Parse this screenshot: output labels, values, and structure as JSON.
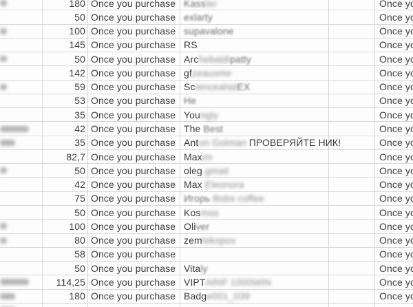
{
  "sheet": {
    "purchase_note": "Once you purchase",
    "colors": {
      "background": "#fdfdfd",
      "gridline": "#d8d8d8",
      "text": "#3a3a3a",
      "blurred_text": "#8c8c8c",
      "redaction_blob": "#b5b5b5"
    },
    "rows": [
      {
        "amount": "180",
        "blob": "sm",
        "note": true,
        "name": [
          {
            "t": "Kass",
            "b": 1
          },
          {
            "t": "ter",
            "b": 2
          }
        ]
      },
      {
        "amount": "50",
        "blob": "",
        "note": true,
        "name": [
          {
            "t": "exlarty",
            "b": 1
          }
        ]
      },
      {
        "amount": "100",
        "blob": "sm",
        "note": true,
        "name": [
          {
            "t": "supavalone",
            "b": 1
          }
        ]
      },
      {
        "amount": "145",
        "blob": "",
        "note": true,
        "name": [
          {
            "t": "RS",
            "b": 0
          }
        ]
      },
      {
        "amount": "50",
        "blob": "sm",
        "note": true,
        "name": [
          {
            "t": "Arc",
            "b": 0
          },
          {
            "t": "hebaldi",
            "b": 2
          },
          {
            "t": "patty",
            "b": 1
          }
        ]
      },
      {
        "amount": "142",
        "blob": "",
        "note": true,
        "name": [
          {
            "t": "gf",
            "b": 0
          },
          {
            "t": "zeausme",
            "b": 2
          }
        ]
      },
      {
        "amount": "59",
        "blob": "sm",
        "note": true,
        "name": [
          {
            "t": "Sc",
            "b": 0
          },
          {
            "t": "ienceahid",
            "b": 2
          },
          {
            "t": "EX",
            "b": 1
          }
        ]
      },
      {
        "amount": "53",
        "blob": "",
        "note": true,
        "name": [
          {
            "t": "He",
            "b": 1
          }
        ]
      },
      {
        "amount": "35",
        "blob": "",
        "note": true,
        "name": [
          {
            "t": "You",
            "b": 0
          },
          {
            "t": "ngiy",
            "b": 2
          }
        ]
      },
      {
        "amount": "42",
        "blob": "lg",
        "note": true,
        "name": [
          {
            "t": "The ",
            "b": 0
          },
          {
            "t": "Best",
            "b": 1
          }
        ]
      },
      {
        "amount": "35",
        "blob": "md",
        "note": true,
        "name": [
          {
            "t": "Ant",
            "b": 0
          },
          {
            "t": "on Golman ",
            "b": 2
          },
          {
            "t": "ПРОВЕРЯЙТЕ НИК!",
            "b": 0
          }
        ]
      },
      {
        "amount": "82,7",
        "blob": "",
        "note": true,
        "name": [
          {
            "t": "Max",
            "b": 0
          },
          {
            "t": "im",
            "b": 2
          }
        ]
      },
      {
        "amount": "50",
        "blob": "sm",
        "note": true,
        "name": [
          {
            "t": "oleg",
            "b": 0
          },
          {
            "t": ".gmail",
            "b": 2
          }
        ]
      },
      {
        "amount": "42",
        "blob": "",
        "note": true,
        "name": [
          {
            "t": "Max ",
            "b": 0
          },
          {
            "t": "Eleonora",
            "b": 2
          }
        ]
      },
      {
        "amount": "75",
        "blob": "",
        "note": true,
        "name": [
          {
            "t": "Игорь",
            "b": 1
          },
          {
            "t": " Bobs coffee",
            "b": 2
          }
        ]
      },
      {
        "amount": "50",
        "blob": "",
        "note": true,
        "name": [
          {
            "t": "Kos",
            "b": 0
          },
          {
            "t": "mos",
            "b": 2
          }
        ]
      },
      {
        "amount": "100",
        "blob": "sm",
        "note": true,
        "name": [
          {
            "t": "Oli",
            "b": 0
          },
          {
            "t": "ver",
            "b": 1
          }
        ]
      },
      {
        "amount": "80",
        "blob": "sm",
        "note": true,
        "name": [
          {
            "t": "zem",
            "b": 0
          },
          {
            "t": "lekopov",
            "b": 2
          }
        ]
      },
      {
        "amount": "58",
        "blob": "",
        "note": true,
        "name": []
      },
      {
        "amount": "50",
        "blob": "",
        "note": true,
        "name": [
          {
            "t": "Vita",
            "b": 0
          },
          {
            "t": "ly",
            "b": 1
          }
        ]
      },
      {
        "amount": "114,25",
        "blob": "lg",
        "note": true,
        "name": [
          {
            "t": "VIPT",
            "b": 0
          },
          {
            "t": "ARIF 1000WIN",
            "b": 2
          }
        ]
      },
      {
        "amount": "180",
        "blob": "md",
        "note": true,
        "name": [
          {
            "t": "Badg",
            "b": 0
          },
          {
            "t": "e001_039",
            "b": 2
          }
        ]
      },
      {
        "amount": "",
        "blob": "md",
        "note": false,
        "name": []
      }
    ]
  }
}
